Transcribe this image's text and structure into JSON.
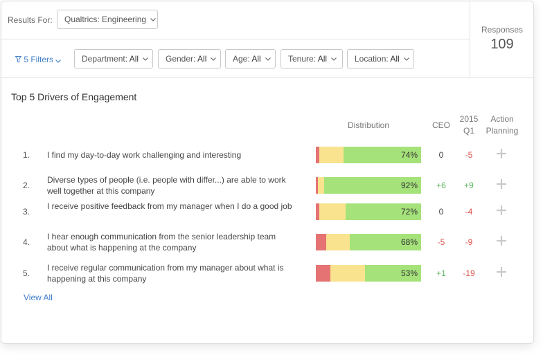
{
  "header": {
    "results_label": "Results For:",
    "results_value": "Qualtrics: Engineering"
  },
  "filters": {
    "link_label": "5 Filters",
    "items": [
      {
        "label": "Department:",
        "value": "All"
      },
      {
        "label": "Gender:",
        "value": "All"
      },
      {
        "label": "Age:",
        "value": "All"
      },
      {
        "label": "Tenure:",
        "value": "All"
      },
      {
        "label": "Location:",
        "value": "All"
      }
    ]
  },
  "responses": {
    "label": "Responses",
    "count": "109"
  },
  "drivers": {
    "title": "Top 5 Drivers of Engagement",
    "columns": {
      "distribution": "Distribution",
      "ceo": "CEO",
      "q1_line1": "2015",
      "q1_line2": "Q1",
      "action_line1": "Action",
      "action_line2": "Planning"
    },
    "rows": [
      {
        "num": "1.",
        "text": "I find my day-to-day work challenging and interesting",
        "red": 0.03,
        "yellow": 0.23,
        "green": 0.74,
        "pct": "74%",
        "ceo": "0",
        "ceo_class": "zero",
        "q1": "-5",
        "q1_class": "neg"
      },
      {
        "num": "2.",
        "text": "Diverse types of people (i.e. people with differ...) are able to work well together at this company",
        "red": 0.02,
        "yellow": 0.06,
        "green": 0.92,
        "pct": "92%",
        "ceo": "+6",
        "ceo_class": "pos",
        "q1": "+9",
        "q1_class": "pos"
      },
      {
        "num": "3.",
        "text": "I receive positive feedback from my manager when I do a good job",
        "red": 0.03,
        "yellow": 0.25,
        "green": 0.72,
        "pct": "72%",
        "ceo": "0",
        "ceo_class": "zero",
        "q1": "-4",
        "q1_class": "neg"
      },
      {
        "num": "4.",
        "text": "I hear enough communication from the senior leadership team about what is happening at the company",
        "red": 0.1,
        "yellow": 0.22,
        "green": 0.68,
        "pct": "68%",
        "ceo": "-5",
        "ceo_class": "neg",
        "q1": "-9",
        "q1_class": "neg"
      },
      {
        "num": "5.",
        "text": "I receive regular communication from my manager about what is happening at this company",
        "red": 0.14,
        "yellow": 0.33,
        "green": 0.53,
        "pct": "53%",
        "ceo": "+1",
        "ceo_class": "pos",
        "q1": "-19",
        "q1_class": "neg"
      }
    ],
    "view_all": "View All"
  },
  "colors": {
    "red": "#e57373",
    "yellow": "#f9e38f",
    "green": "#a5e27a",
    "link": "#3f7fc8"
  }
}
